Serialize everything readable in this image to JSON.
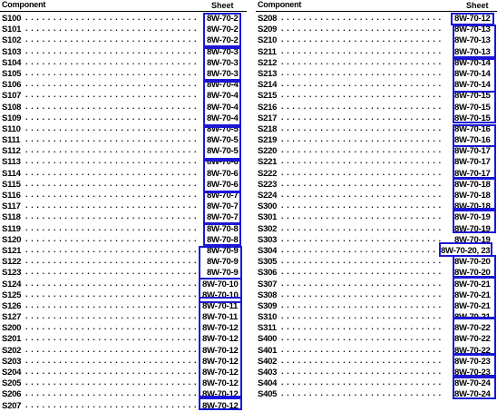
{
  "headers": {
    "component": "Component",
    "sheet": "Sheet"
  },
  "box_color": "#1b16d6",
  "left_rows": [
    {
      "c": "S100",
      "s": "8W-70-2"
    },
    {
      "c": "S101",
      "s": "8W-70-2"
    },
    {
      "c": "S102",
      "s": "8W-70-2"
    },
    {
      "c": "S103",
      "s": "8W-70-3"
    },
    {
      "c": "S104",
      "s": "8W-70-3"
    },
    {
      "c": "S105",
      "s": "8W-70-3"
    },
    {
      "c": "S106",
      "s": "8W-70-4"
    },
    {
      "c": "S107",
      "s": "8W-70-4"
    },
    {
      "c": "S108",
      "s": "8W-70-4"
    },
    {
      "c": "S109",
      "s": "8W-70-4"
    },
    {
      "c": "S110",
      "s": "8W-70-5"
    },
    {
      "c": "S111",
      "s": "8W-70-5"
    },
    {
      "c": "S112",
      "s": "8W-70-5"
    },
    {
      "c": "S113",
      "s": "8W-70-6"
    },
    {
      "c": "S114",
      "s": "8W-70-6"
    },
    {
      "c": "S115",
      "s": "8W-70-6"
    },
    {
      "c": "S116",
      "s": "8W-70-7"
    },
    {
      "c": "S117",
      "s": "8W-70-7"
    },
    {
      "c": "S118",
      "s": "8W-70-7"
    },
    {
      "c": "S119",
      "s": "8W-70-8"
    },
    {
      "c": "S120",
      "s": "8W-70-8"
    },
    {
      "c": "S121",
      "s": "8W-70-9"
    },
    {
      "c": "S122",
      "s": "8W-70-9"
    },
    {
      "c": "S123",
      "s": "8W-70-9"
    },
    {
      "c": "S124",
      "s": "8W-70-10"
    },
    {
      "c": "S125",
      "s": "8W-70-10"
    },
    {
      "c": "S126",
      "s": "8W-70-11"
    },
    {
      "c": "S127",
      "s": "8W-70-11"
    },
    {
      "c": "S200",
      "s": "8W-70-12"
    },
    {
      "c": "S201",
      "s": "8W-70-12"
    },
    {
      "c": "S202",
      "s": "8W-70-12"
    },
    {
      "c": "S203",
      "s": "8W-70-12"
    },
    {
      "c": "S204",
      "s": "8W-70-12"
    },
    {
      "c": "S205",
      "s": "8W-70-12"
    },
    {
      "c": "S206",
      "s": "8W-70-12"
    },
    {
      "c": "S207",
      "s": "8W-70-12"
    }
  ],
  "right_rows": [
    {
      "c": "S208",
      "s": "8W-70-12"
    },
    {
      "c": "S209",
      "s": "8W-70-13"
    },
    {
      "c": "S210",
      "s": "8W-70-13"
    },
    {
      "c": "S211",
      "s": "8W-70-13"
    },
    {
      "c": "S212",
      "s": "8W-70-14"
    },
    {
      "c": "S213",
      "s": "8W-70-14"
    },
    {
      "c": "S214",
      "s": "8W-70-14"
    },
    {
      "c": "S215",
      "s": "8W-70-15"
    },
    {
      "c": "S216",
      "s": "8W-70-15"
    },
    {
      "c": "S217",
      "s": "8W-70-15"
    },
    {
      "c": "S218",
      "s": "8W-70-16"
    },
    {
      "c": "S219",
      "s": "8W-70-16"
    },
    {
      "c": "S220",
      "s": "8W-70-17"
    },
    {
      "c": "S221",
      "s": "8W-70-17"
    },
    {
      "c": "S222",
      "s": "8W-70-17"
    },
    {
      "c": "S223",
      "s": "8W-70-18"
    },
    {
      "c": "S224",
      "s": "8W-70-18"
    },
    {
      "c": "S300",
      "s": "8W-70-18"
    },
    {
      "c": "S301",
      "s": "8W-70-19"
    },
    {
      "c": "S302",
      "s": "8W-70-19"
    },
    {
      "c": "S303",
      "s": "8W-70-19"
    },
    {
      "c": "S304",
      "s": "8W-70-20, 23"
    },
    {
      "c": "S305",
      "s": "8W-70-20"
    },
    {
      "c": "S306",
      "s": "8W-70-20"
    },
    {
      "c": "S307",
      "s": "8W-70-21"
    },
    {
      "c": "S308",
      "s": "8W-70-21"
    },
    {
      "c": "S309",
      "s": "8W-70-21"
    },
    {
      "c": "S310",
      "s": "8W-70-21"
    },
    {
      "c": "S311",
      "s": "8W-70-22"
    },
    {
      "c": "S400",
      "s": "8W-70-22"
    },
    {
      "c": "S401",
      "s": "8W-70-22"
    },
    {
      "c": "S402",
      "s": "8W-70-23"
    },
    {
      "c": "S403",
      "s": "8W-70-23"
    },
    {
      "c": "S404",
      "s": "8W-70-24"
    },
    {
      "c": "S405",
      "s": "8W-70-24"
    }
  ]
}
